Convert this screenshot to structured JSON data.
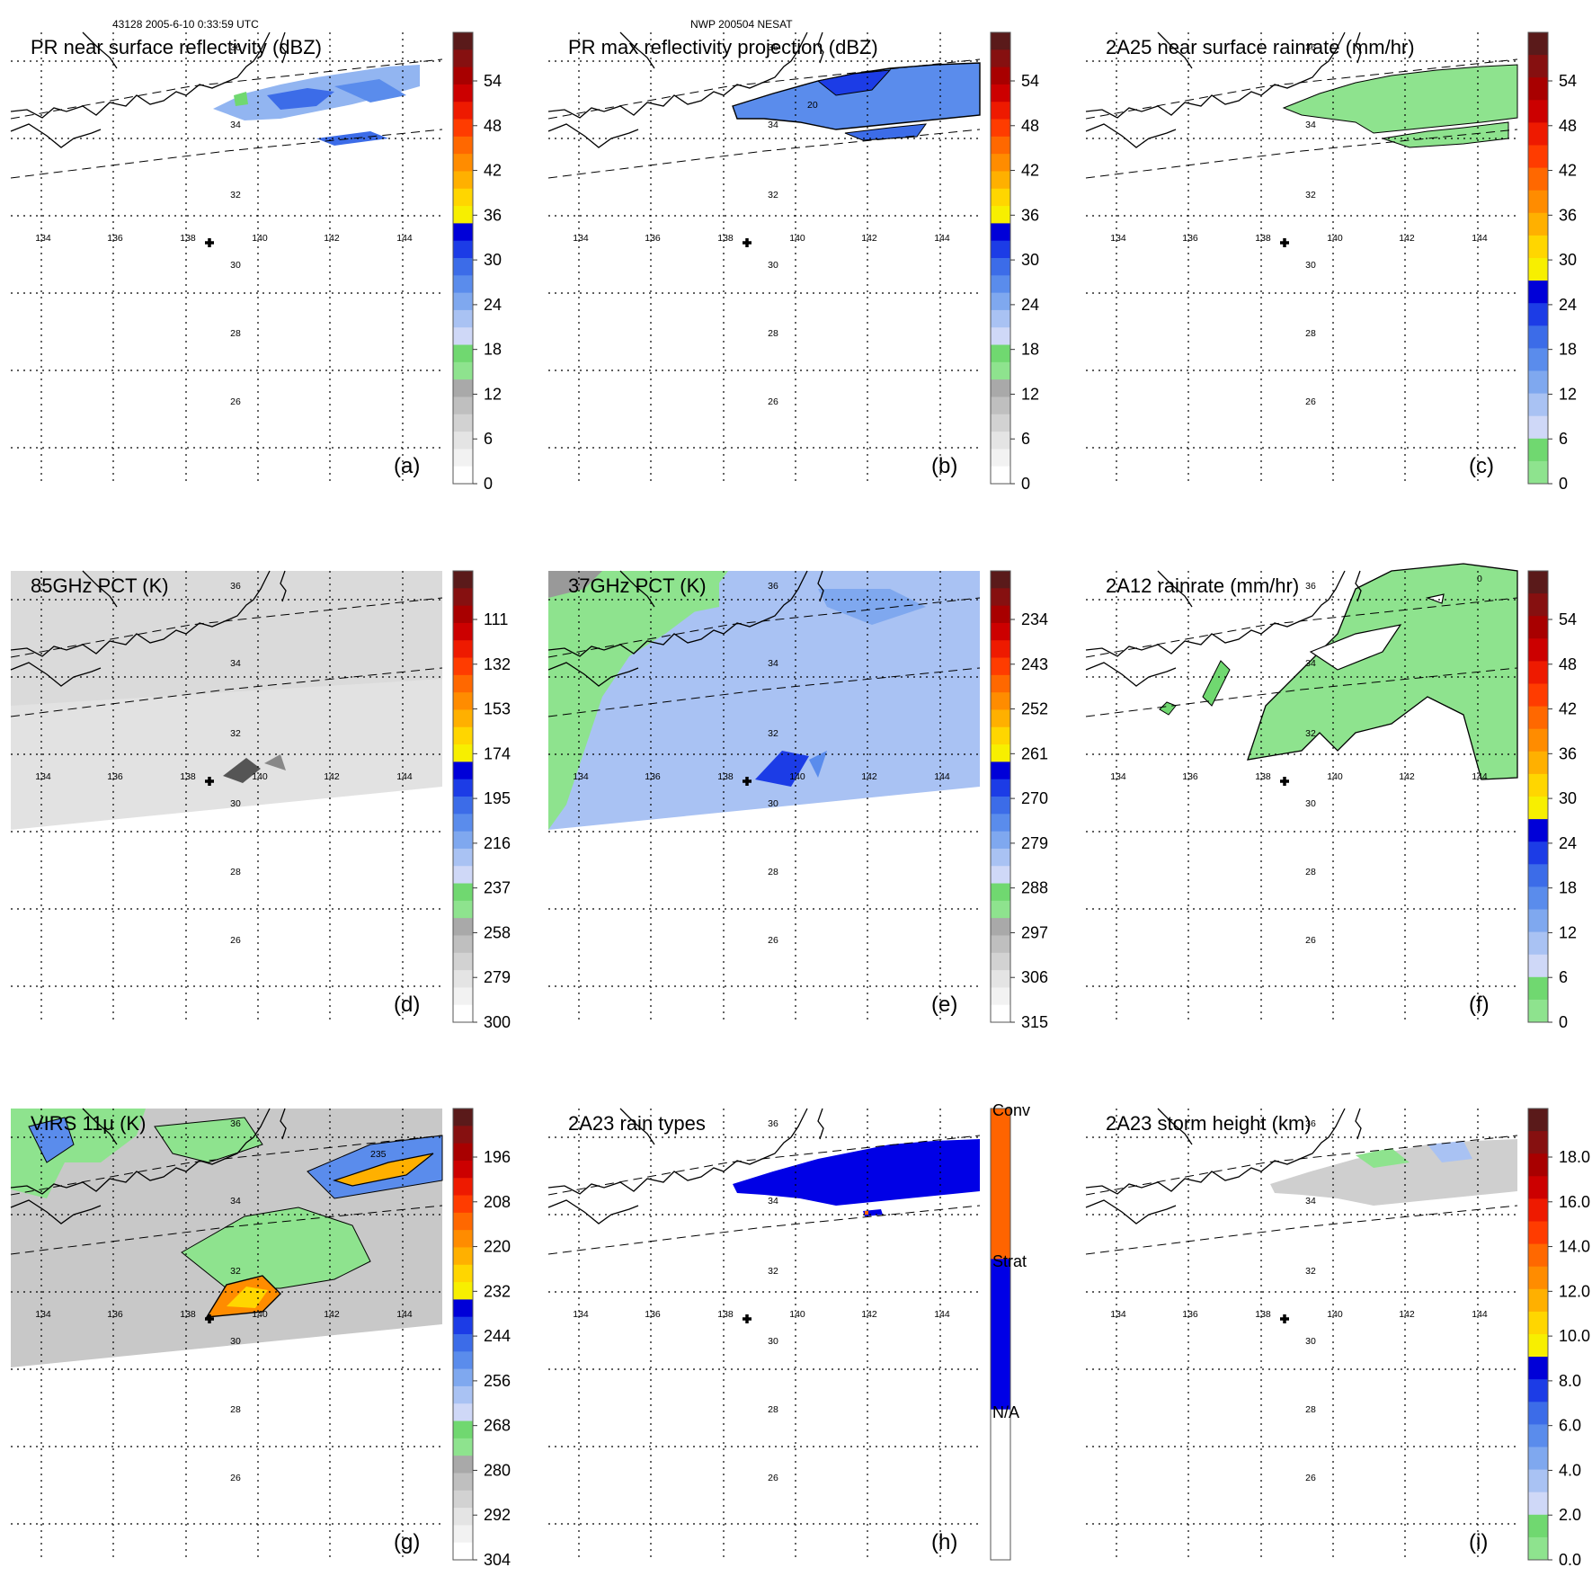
{
  "header": {
    "left": "43128 2005-6-10 0:33:59 UTC",
    "center": "NWP 200504 NESAT"
  },
  "map_axes": {
    "lon_labels": [
      "134",
      "136",
      "138",
      "140",
      "142",
      "144"
    ],
    "lat_labels": [
      "36",
      "34",
      "32",
      "30",
      "28",
      "26"
    ],
    "contour_labels": {
      "b": "20",
      "f": "0",
      "g": "235"
    }
  },
  "palettes": {
    "dbz": [
      "#ffffff",
      "#f2f2f2",
      "#e4e4e4",
      "#d2d2d2",
      "#bfbfbf",
      "#a9a9a9",
      "#8ee38e",
      "#70d870",
      "#cfd8f7",
      "#a9c2f3",
      "#7fa8ef",
      "#5a8cec",
      "#3c6ce8",
      "#1c3ce6",
      "#0000d8",
      "#f7ef00",
      "#ffd600",
      "#ffb000",
      "#ff8c00",
      "#ff6800",
      "#ff3c00",
      "#ee1a00",
      "#cc0000",
      "#a80000",
      "#861010",
      "#5a1a1a"
    ],
    "rain": [
      "#8ee38e",
      "#70d870",
      "#cfd8f7",
      "#a9c2f3",
      "#7fa8ef",
      "#5a8cec",
      "#3c6ce8",
      "#1c3ce6",
      "#0000d8",
      "#f7ef00",
      "#ffd600",
      "#ffb000",
      "#ff8c00",
      "#ff6800",
      "#ff3c00",
      "#ee1a00",
      "#cc0000",
      "#a80000",
      "#861010",
      "#5a1a1a"
    ],
    "pct": [
      "#ffffff",
      "#f2f2f2",
      "#e4e4e4",
      "#d2d2d2",
      "#bfbfbf",
      "#a9a9a9",
      "#8ee38e",
      "#70d870",
      "#cfd8f7",
      "#a9c2f3",
      "#7fa8ef",
      "#5a8cec",
      "#3c6ce8",
      "#1c3ce6",
      "#0000d8",
      "#f7ef00",
      "#ffd600",
      "#ffb000",
      "#ff8c00",
      "#ff6800",
      "#ff3c00",
      "#ee1a00",
      "#cc0000",
      "#a80000",
      "#861010",
      "#5a1a1a"
    ],
    "raintype": [
      "#ffffff",
      "#ffffff",
      "#0000e6",
      "#0000e6",
      "#ff6400",
      "#ff6400"
    ]
  },
  "panels": [
    {
      "id": "a",
      "title": "PR near surface reflectivity (dBZ)",
      "letter": "(a)",
      "palette": "dbz",
      "ticks": [
        "54",
        "48",
        "42",
        "36",
        "30",
        "24",
        "18",
        "12",
        "6",
        "0"
      ]
    },
    {
      "id": "b",
      "title": "PR max reflectivity projection (dBZ)",
      "letter": "(b)",
      "palette": "dbz",
      "ticks": [
        "54",
        "48",
        "42",
        "36",
        "30",
        "24",
        "18",
        "12",
        "6",
        "0"
      ]
    },
    {
      "id": "c",
      "title": "2A25 near surface rainrate (mm/hr)",
      "letter": "(c)",
      "palette": "rain",
      "ticks": [
        "54",
        "48",
        "42",
        "36",
        "30",
        "24",
        "18",
        "12",
        "6",
        "0"
      ]
    },
    {
      "id": "d",
      "title": "85GHz PCT (K)",
      "letter": "(d)",
      "palette": "pct",
      "ticks": [
        "111",
        "132",
        "153",
        "174",
        "195",
        "216",
        "237",
        "258",
        "279",
        "300"
      ]
    },
    {
      "id": "e",
      "title": "37GHz PCT (K)",
      "letter": "(e)",
      "palette": "pct",
      "ticks": [
        "234",
        "243",
        "252",
        "261",
        "270",
        "279",
        "288",
        "297",
        "306",
        "315"
      ]
    },
    {
      "id": "f",
      "title": "2A12 rainrate (mm/hr)",
      "letter": "(f)",
      "palette": "rain",
      "ticks": [
        "54",
        "48",
        "42",
        "36",
        "30",
        "24",
        "18",
        "12",
        "6",
        "0"
      ]
    },
    {
      "id": "g",
      "title": "VIRS 11μ (K)",
      "letter": "(g)",
      "palette": "pct",
      "ticks": [
        "196",
        "208",
        "220",
        "232",
        "244",
        "256",
        "268",
        "280",
        "292",
        "304"
      ]
    },
    {
      "id": "h",
      "title": "2A23 rain types",
      "letter": "(h)",
      "palette": "raintype",
      "ticks": [
        "Conv",
        "Strat",
        "N/A"
      ]
    },
    {
      "id": "i",
      "title": "2A23 storm height (km)",
      "letter": "(i)",
      "palette": "rain",
      "ticks": [
        "18.0",
        "16.0",
        "14.0",
        "12.0",
        "10.0",
        "8.0",
        "6.0",
        "4.0",
        "2.0",
        "0.0"
      ]
    }
  ]
}
